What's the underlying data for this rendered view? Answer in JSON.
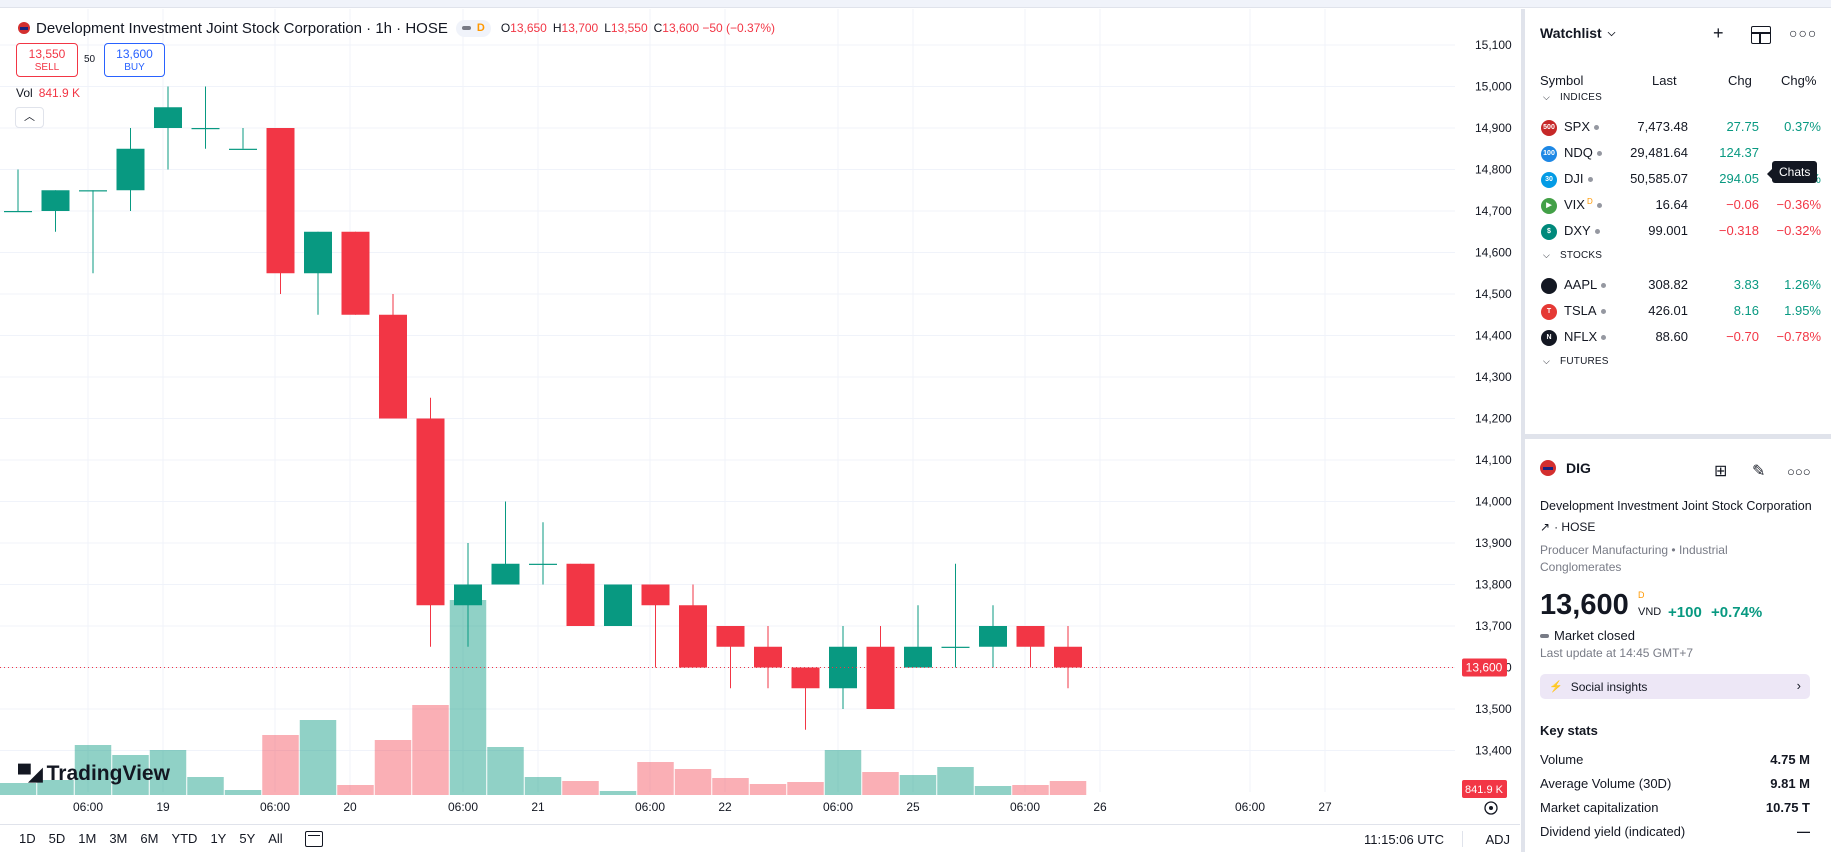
{
  "header": {
    "title": "Development Investment Joint Stock Corporation · 1h · HOSE",
    "mode_badge": "D",
    "ohlc": [
      {
        "k": "O",
        "v": "13,650"
      },
      {
        "k": "H",
        "v": "13,700"
      },
      {
        "k": "L",
        "v": "13,550"
      },
      {
        "k": "C",
        "v": "13,600 −50 (−0.37%)"
      }
    ]
  },
  "trade": {
    "sell_price": "13,550",
    "sell_label": "SELL",
    "spread": "50",
    "buy_price": "13,600",
    "buy_label": "BUY"
  },
  "volume": {
    "label": "Vol",
    "value": "841.9 K"
  },
  "brand": "TradingView",
  "chart_data": {
    "type": "candlestick",
    "symbol": "DIG",
    "y_ticks": [
      "15,100",
      "15,000",
      "14,900",
      "14,800",
      "14,700",
      "14,600",
      "14,500",
      "14,400",
      "14,300",
      "14,200",
      "14,100",
      "14,000",
      "13,900",
      "13,800",
      "13,700",
      "13,600",
      "13,500",
      "13,400"
    ],
    "x_ticks": [
      "06:00",
      "19",
      "06:00",
      "20",
      "06:00",
      "21",
      "06:00",
      "22",
      "06:00",
      "25",
      "06:00",
      "26",
      "06:00",
      "27"
    ],
    "last_price_label": "13,600",
    "last_volume_label": "841.9 K",
    "candles": [
      {
        "o": 14700,
        "h": 14800,
        "l": 14700,
        "c": 14700
      },
      {
        "o": 14700,
        "h": 14750,
        "l": 14650,
        "c": 14750
      },
      {
        "o": 14750,
        "h": 14750,
        "l": 14550,
        "c": 14750
      },
      {
        "o": 14750,
        "h": 14900,
        "l": 14700,
        "c": 14850
      },
      {
        "o": 14900,
        "h": 15000,
        "l": 14800,
        "c": 14950
      },
      {
        "o": 14900,
        "h": 15000,
        "l": 14850,
        "c": 14900
      },
      {
        "o": 14850,
        "h": 14900,
        "l": 14850,
        "c": 14850
      },
      {
        "o": 14900,
        "h": 14900,
        "l": 14500,
        "c": 14550
      },
      {
        "o": 14550,
        "h": 14650,
        "l": 14450,
        "c": 14650
      },
      {
        "o": 14650,
        "h": 14650,
        "l": 14450,
        "c": 14450
      },
      {
        "o": 14450,
        "h": 14500,
        "l": 14200,
        "c": 14200
      },
      {
        "o": 14200,
        "h": 14250,
        "l": 13650,
        "c": 13750
      },
      {
        "o": 13750,
        "h": 13900,
        "l": 13650,
        "c": 13800
      },
      {
        "o": 13800,
        "h": 14000,
        "l": 13800,
        "c": 13850
      },
      {
        "o": 13850,
        "h": 13950,
        "l": 13800,
        "c": 13850
      },
      {
        "o": 13850,
        "h": 13850,
        "l": 13700,
        "c": 13700
      },
      {
        "o": 13700,
        "h": 13800,
        "l": 13700,
        "c": 13800
      },
      {
        "o": 13800,
        "h": 13800,
        "l": 13600,
        "c": 13750
      },
      {
        "o": 13750,
        "h": 13800,
        "l": 13600,
        "c": 13600
      },
      {
        "o": 13700,
        "h": 13700,
        "l": 13550,
        "c": 13650
      },
      {
        "o": 13650,
        "h": 13700,
        "l": 13550,
        "c": 13600
      },
      {
        "o": 13600,
        "h": 13600,
        "l": 13450,
        "c": 13550
      },
      {
        "o": 13550,
        "h": 13700,
        "l": 13500,
        "c": 13650
      },
      {
        "o": 13650,
        "h": 13700,
        "l": 13500,
        "c": 13500
      },
      {
        "o": 13600,
        "h": 13750,
        "l": 13600,
        "c": 13650
      },
      {
        "o": 13650,
        "h": 13850,
        "l": 13600,
        "c": 13650
      },
      {
        "o": 13650,
        "h": 13750,
        "l": 13600,
        "c": 13700
      },
      {
        "o": 13700,
        "h": 13700,
        "l": 13600,
        "c": 13650
      },
      {
        "o": 13650,
        "h": 13700,
        "l": 13550,
        "c": 13600
      }
    ],
    "volumes": [
      0.12,
      0.15,
      0.5,
      0.4,
      0.45,
      0.18,
      0.05,
      0.6,
      0.75,
      0.1,
      0.55,
      0.9,
      1.95,
      0.48,
      0.18,
      0.14,
      0.04,
      0.33,
      0.26,
      0.17,
      0.11,
      0.13,
      0.45,
      0.23,
      0.2,
      0.28,
      0.09,
      0.1,
      0.14
    ]
  },
  "bottom_bar": {
    "ranges": [
      "1D",
      "5D",
      "1M",
      "3M",
      "6M",
      "YTD",
      "1Y",
      "5Y",
      "All"
    ],
    "clock": "11:15:06 UTC",
    "adj": "ADJ"
  },
  "watchlist": {
    "title": "Watchlist",
    "columns": {
      "symbol": "Symbol",
      "last": "Last",
      "chg": "Chg",
      "pct": "Chg%"
    },
    "groups": [
      {
        "label": "INDICES",
        "rows": [
          {
            "icon": "500",
            "color": "#c62828",
            "symbol": "SPX",
            "last": "7,473.48",
            "chg": "27.75",
            "pct": "0.37%",
            "dir": "pos"
          },
          {
            "icon": "100",
            "color": "#1e88e5",
            "symbol": "NDQ",
            "last": "29,481.64",
            "chg": "124.37",
            "pct": "",
            "dir": "pos"
          },
          {
            "icon": "30",
            "color": "#039be5",
            "symbol": "DJI",
            "last": "50,585.07",
            "chg": "294.05",
            "pct": "0.58%",
            "dir": "pos"
          },
          {
            "icon": "▶",
            "color": "#43a047",
            "symbol": "VIX",
            "last": "16.64",
            "chg": "−0.06",
            "pct": "−0.36%",
            "dir": "neg",
            "badge": "D"
          },
          {
            "icon": "$",
            "color": "#00897b",
            "symbol": "DXY",
            "last": "99.001",
            "chg": "−0.318",
            "pct": "−0.32%",
            "dir": "neg"
          }
        ]
      },
      {
        "label": "STOCKS",
        "rows": [
          {
            "icon": "",
            "color": "#131722",
            "symbol": "AAPL",
            "last": "308.82",
            "chg": "3.83",
            "pct": "1.26%",
            "dir": "pos"
          },
          {
            "icon": "T",
            "color": "#e53935",
            "symbol": "TSLA",
            "last": "426.01",
            "chg": "8.16",
            "pct": "1.95%",
            "dir": "pos"
          },
          {
            "icon": "N",
            "color": "#131722",
            "symbol": "NFLX",
            "last": "88.60",
            "chg": "−0.70",
            "pct": "−0.78%",
            "dir": "neg"
          }
        ]
      },
      {
        "label": "FUTURES",
        "rows": []
      }
    ],
    "tooltip": "Chats"
  },
  "details": {
    "symbol": "DIG",
    "name": "Development Investment Joint Stock Corporation",
    "exchange": "HOSE",
    "category_1": "Producer Manufacturing",
    "category_2": "Industrial Conglomerates",
    "price": "13,600",
    "price_badge": "D",
    "currency": "VND",
    "change": "+100",
    "change_pct": "+0.74%",
    "market_status": "Market closed",
    "last_update": "Last update at 14:45 GMT+7",
    "social": "Social insights",
    "key_stats_title": "Key stats",
    "key_stats": [
      {
        "label": "Volume",
        "value": "4.75 M"
      },
      {
        "label": "Average Volume (30D)",
        "value": "9.81 M"
      },
      {
        "label": "Market capitalization",
        "value": "10.75 T"
      },
      {
        "label": "Dividend yield (indicated)",
        "value": "—"
      }
    ]
  }
}
